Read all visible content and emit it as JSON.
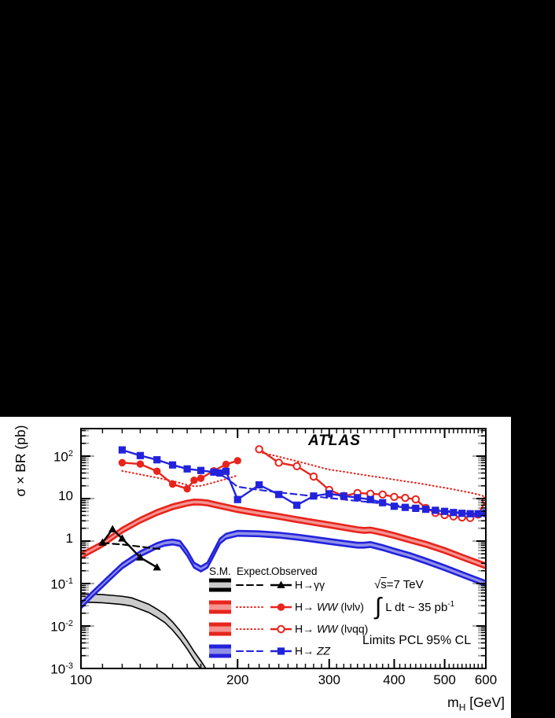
{
  "chart_data": {
    "type": "line",
    "title": "ATLAS",
    "ylabel": "σ × BR (pb)",
    "xlabel_parts": {
      "main": "m",
      "sub": "H",
      "rest": " [GeV]"
    },
    "x_scale": "log",
    "y_scale": "log",
    "xlim": [
      100,
      600
    ],
    "ylim": [
      0.001,
      445
    ],
    "x_major_ticks": [
      100,
      200,
      300,
      400,
      500,
      600
    ],
    "y_major_ticks": [
      {
        "value": 100,
        "base": "10",
        "exp": "2"
      },
      {
        "value": 10,
        "base": "10",
        "exp": ""
      },
      {
        "value": 1,
        "base": "1",
        "exp": ""
      },
      {
        "value": 0.1,
        "base": "10",
        "exp": "-1"
      },
      {
        "value": 0.01,
        "base": "10",
        "exp": "-2"
      },
      {
        "value": 0.001,
        "base": "10",
        "exp": "-3"
      }
    ],
    "annotations": {
      "sqrt_prefix": "√",
      "sqrt_s": "s",
      "sqrt_rest": "=7 TeV",
      "integral_sign": "∫",
      "lumi_text": "L dt ~ 35 pb",
      "lumi_sup": "-1",
      "limits": "Limits PCL 95% CL"
    },
    "colors": {
      "red": "#e8241c",
      "red_light": "#f4938f",
      "blue": "#2222dd",
      "blue_light": "#9090e8",
      "black": "#000000",
      "gray_light": "#cbcbcb"
    },
    "legend": {
      "header": [
        "S.M.",
        "Expect.",
        "Observed"
      ],
      "rows": [
        {
          "channel": "gamma-gamma",
          "color": "black",
          "band_fill": "gray_light",
          "dash": "dashed",
          "marker": "triangle",
          "label_parts": [
            {
              "t": "H→γγ",
              "i": false
            }
          ]
        },
        {
          "channel": "WW-lvlv",
          "color": "red",
          "band_fill": "red_light",
          "dash": "dotted",
          "marker": "circle-filled",
          "label_parts": [
            {
              "t": "H→ ",
              "i": false
            },
            {
              "t": "WW",
              "i": true
            },
            {
              "t": " (lνlν)",
              "i": false
            }
          ]
        },
        {
          "channel": "WW-lvqq",
          "color": "red",
          "band_fill": "red_light",
          "dash": "dotted",
          "marker": "circle-open",
          "label_parts": [
            {
              "t": "H→ ",
              "i": false
            },
            {
              "t": "WW",
              "i": true
            },
            {
              "t": " (lνqq)",
              "i": false
            }
          ]
        },
        {
          "channel": "ZZ",
          "color": "blue",
          "band_fill": "blue_light",
          "dash": "dashed",
          "marker": "square",
          "label_parts": [
            {
              "t": "H→ ",
              "i": false
            },
            {
              "t": "ZZ",
              "i": true
            }
          ]
        }
      ]
    },
    "sm_bands": [
      {
        "name": "SM H→γγ",
        "edge": "black",
        "fill": "gray_light",
        "rel_halfwidth": 0.25,
        "edge_width": 1.6,
        "x": [
          100,
          105,
          110,
          115,
          120,
          125,
          130,
          135,
          140,
          145,
          150,
          155,
          160,
          165,
          170,
          174,
          178,
          182
        ],
        "y": [
          0.045,
          0.045,
          0.044,
          0.042,
          0.04,
          0.037,
          0.031,
          0.026,
          0.02,
          0.015,
          0.01,
          0.0062,
          0.0036,
          0.002,
          0.0012,
          0.00078,
          0.00055,
          0.00038
        ]
      },
      {
        "name": "SM H→WW",
        "edge": "red",
        "fill": "red_light",
        "rel_halfwidth": 0.14,
        "edge_width": 2.6,
        "x": [
          100,
          105,
          110,
          115,
          120,
          130,
          140,
          150,
          160,
          165,
          170,
          175,
          180,
          190,
          200,
          220,
          240,
          260,
          280,
          300,
          320,
          340,
          350,
          360,
          380,
          400,
          430,
          460,
          500,
          550,
          600
        ],
        "y": [
          0.45,
          0.62,
          0.85,
          1.25,
          1.8,
          3.1,
          4.7,
          6.4,
          7.8,
          8.3,
          8.2,
          7.9,
          7.3,
          6.3,
          5.5,
          4.5,
          3.8,
          3.2,
          2.75,
          2.4,
          2.1,
          1.85,
          1.78,
          1.82,
          1.58,
          1.35,
          1.05,
          0.84,
          0.6,
          0.385,
          0.26
        ]
      },
      {
        "name": "SM H→ZZ",
        "edge": "blue",
        "fill": "blue_light",
        "rel_halfwidth": 0.14,
        "edge_width": 2.6,
        "x": [
          100,
          105,
          110,
          115,
          120,
          130,
          140,
          145,
          150,
          155,
          160,
          165,
          170,
          175,
          180,
          185,
          190,
          200,
          220,
          240,
          260,
          280,
          300,
          320,
          340,
          350,
          360,
          380,
          400,
          430,
          460,
          500,
          550,
          600
        ],
        "y": [
          0.03,
          0.055,
          0.095,
          0.16,
          0.26,
          0.5,
          0.78,
          0.9,
          0.95,
          0.88,
          0.52,
          0.27,
          0.22,
          0.27,
          0.52,
          1.0,
          1.3,
          1.52,
          1.48,
          1.38,
          1.24,
          1.1,
          0.98,
          0.88,
          0.8,
          0.8,
          0.83,
          0.7,
          0.58,
          0.45,
          0.34,
          0.235,
          0.15,
          0.1
        ]
      }
    ],
    "expected": [
      {
        "name": "Expected H→γγ",
        "color": "black",
        "dash": "dashed",
        "x": [
          110,
          120,
          130,
          140,
          144
        ],
        "y": [
          0.9,
          0.83,
          0.74,
          0.66,
          0.64
        ]
      },
      {
        "name": "Expected H→WW (lνlν)",
        "color": "red",
        "dash": "dotted",
        "x": [
          120,
          130,
          140,
          150,
          160,
          165,
          170,
          180,
          190,
          200
        ],
        "y": [
          45,
          37,
          31,
          26,
          21,
          19.5,
          20,
          24,
          29,
          35
        ]
      },
      {
        "name": "Expected H→WW (lνqq)",
        "color": "red",
        "dash": "dotted",
        "x": [
          220,
          240,
          260,
          280,
          300,
          320,
          340,
          360,
          380,
          400,
          420,
          440,
          460,
          480,
          500,
          520,
          540,
          560,
          580,
          600
        ],
        "y": [
          125,
          97,
          76,
          60,
          48,
          43,
          38,
          34,
          31,
          28,
          25.5,
          23.5,
          21.5,
          19.5,
          18,
          16.5,
          15,
          13.8,
          12.5,
          11
        ]
      },
      {
        "name": "Expected H→ZZ",
        "color": "blue",
        "dash": "dashed",
        "x": [
          180,
          190,
          200,
          220,
          240,
          260,
          280,
          300,
          320,
          340,
          360,
          380,
          400,
          420,
          440,
          460,
          480,
          500,
          520,
          540,
          560,
          580,
          600
        ],
        "y": [
          44,
          31,
          19,
          16,
          14,
          12.6,
          11.3,
          10.3,
          9.5,
          8.8,
          8.2,
          7.6,
          7.1,
          6.7,
          6.3,
          5.9,
          5.5,
          5.2,
          4.9,
          4.6,
          4.3,
          4.05,
          3.8
        ]
      }
    ],
    "observed": [
      {
        "name": "Observed H→γγ",
        "color": "black",
        "marker": "triangle",
        "x": [
          110,
          115,
          120,
          130,
          140
        ],
        "y": [
          0.92,
          1.9,
          1.15,
          0.41,
          0.24
        ]
      },
      {
        "name": "Observed H→WW (lνlν)",
        "color": "red",
        "marker": "circle-filled",
        "x": [
          120,
          130,
          140,
          150,
          160,
          165,
          170,
          180,
          190,
          200
        ],
        "y": [
          70,
          65,
          44,
          22,
          17,
          27,
          30,
          45,
          64,
          78
        ]
      },
      {
        "name": "Observed H→WW (lνqq)",
        "color": "red",
        "marker": "circle-open",
        "x": [
          220,
          240,
          260,
          280,
          300,
          320,
          340,
          360,
          380,
          400,
          420,
          440,
          460,
          480,
          500,
          520,
          540,
          560,
          580,
          600
        ],
        "y": [
          145,
          70,
          58,
          33,
          16,
          11.5,
          13.5,
          13,
          12.5,
          11,
          10.4,
          9.6,
          6.0,
          4.6,
          4.1,
          3.8,
          3.6,
          3.5,
          4.2,
          9.0
        ]
      },
      {
        "name": "Observed H→ZZ",
        "color": "blue",
        "marker": "square",
        "x": [
          120,
          130,
          140,
          150,
          160,
          170,
          180,
          185,
          190,
          200,
          220,
          240,
          260,
          280,
          300,
          320,
          340,
          360,
          380,
          400,
          420,
          440,
          460,
          480,
          500,
          520,
          540,
          560,
          580,
          600
        ],
        "y": [
          140,
          103,
          82,
          62,
          50,
          46,
          42,
          40,
          44,
          9.5,
          21,
          12.5,
          7,
          11.5,
          13,
          11.5,
          10.5,
          9.5,
          8,
          6.6,
          6.2,
          5.9,
          5.6,
          5.3,
          5.0,
          4.7,
          4.5,
          4.4,
          4.4,
          4.6
        ]
      }
    ]
  }
}
